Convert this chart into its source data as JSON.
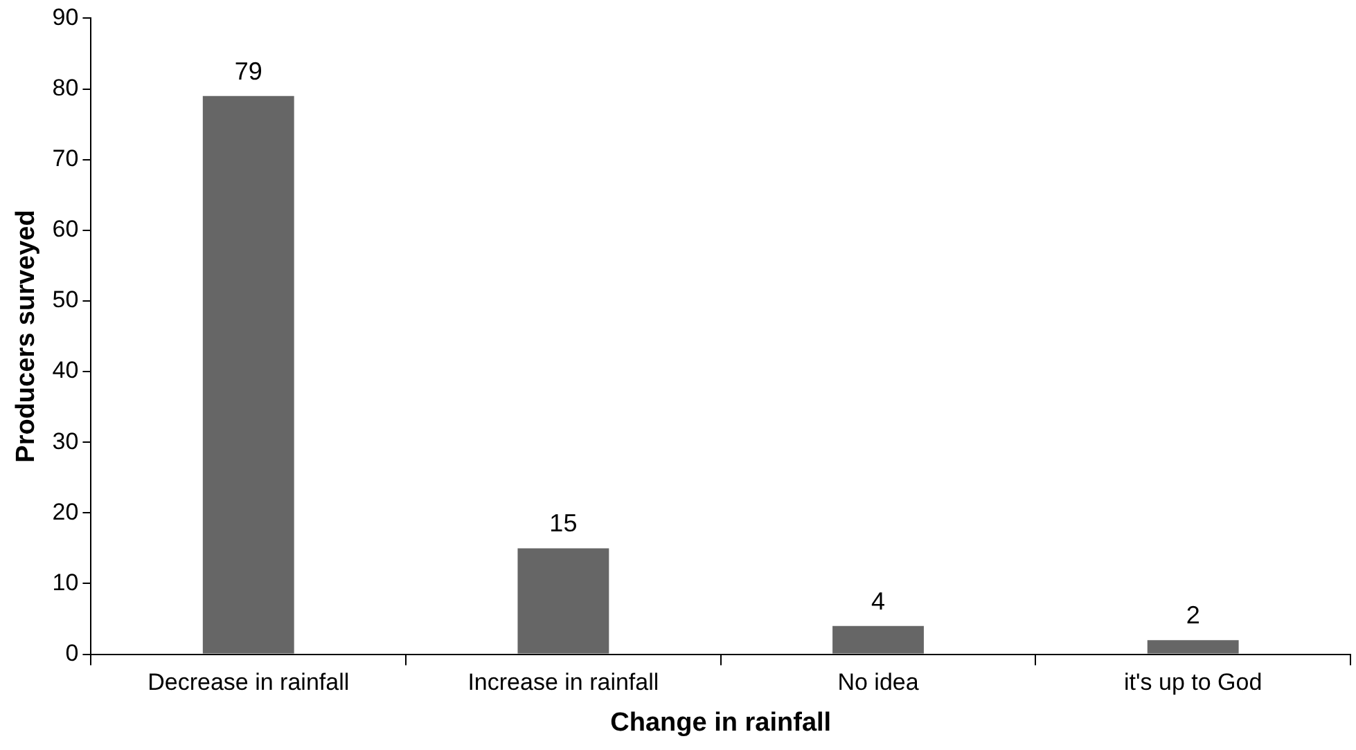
{
  "chart_data": {
    "type": "bar",
    "xlabel": "Change in rainfall",
    "ylabel": "Producers surveyed",
    "categories": [
      "Decrease in rainfall",
      "Increase in rainfall",
      "No idea",
      "it's up to God"
    ],
    "values": [
      79,
      15,
      4,
      2
    ],
    "color": "#666666",
    "ylim": [
      0,
      90
    ],
    "yticks": [
      0,
      10,
      20,
      30,
      40,
      50,
      60,
      70,
      80,
      90
    ],
    "grid": false,
    "legend": false,
    "data_labels": true
  }
}
